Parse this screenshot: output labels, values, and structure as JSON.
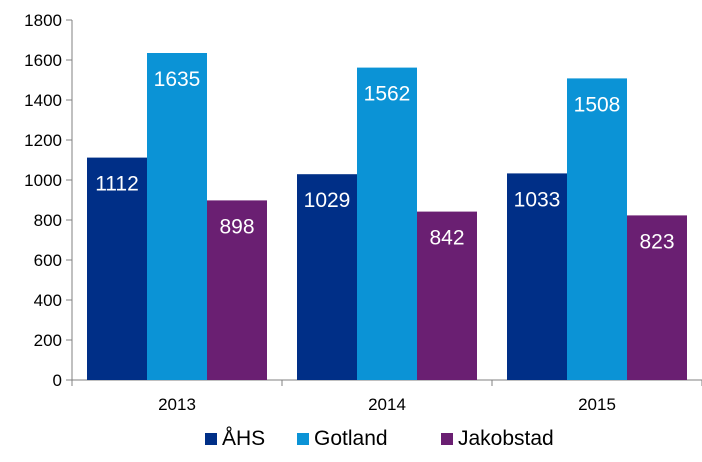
{
  "chart_data": {
    "type": "bar",
    "categories": [
      "2013",
      "2014",
      "2015"
    ],
    "series": [
      {
        "name": "ÅHS",
        "values": [
          1112,
          1029,
          1033
        ],
        "color": "#002f87"
      },
      {
        "name": "Gotland",
        "values": [
          1635,
          1562,
          1508
        ],
        "color": "#0b93d6"
      },
      {
        "name": "Jakobstad",
        "values": [
          898,
          842,
          823
        ],
        "color": "#6a1f72"
      }
    ],
    "ylim": [
      0,
      1800
    ],
    "yticks": [
      0,
      200,
      400,
      600,
      800,
      1000,
      1200,
      1400,
      1600,
      1800
    ],
    "grid": false,
    "legend_position": "bottom",
    "data_labels": true,
    "title": "",
    "xlabel": "",
    "ylabel": ""
  }
}
